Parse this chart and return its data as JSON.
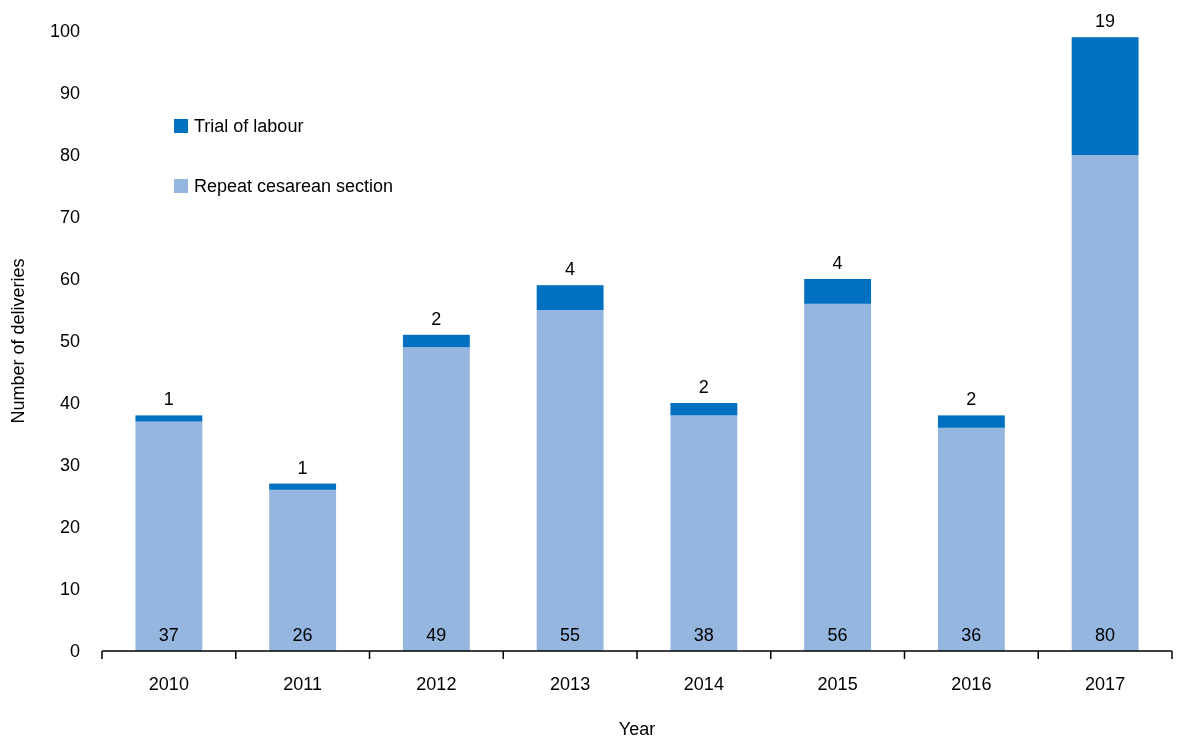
{
  "chart_data": {
    "type": "bar",
    "stacked": true,
    "xlabel": "Year",
    "ylabel": "Number of deliveries",
    "categories": [
      "2010",
      "2011",
      "2012",
      "2013",
      "2014",
      "2015",
      "2016",
      "2017"
    ],
    "series": [
      {
        "name": "Repeat cesarean section",
        "color": "#95b6df",
        "values": [
          37,
          26,
          49,
          55,
          38,
          56,
          36,
          80
        ]
      },
      {
        "name": "Trial of labour",
        "color": "#0070c0",
        "values": [
          1,
          1,
          2,
          4,
          2,
          4,
          2,
          19
        ]
      }
    ],
    "ylim": [
      0,
      100
    ],
    "yticks": [
      0,
      10,
      20,
      30,
      40,
      50,
      60,
      70,
      80,
      90,
      100
    ],
    "grid": false,
    "legend": "top left",
    "data_labels": true
  }
}
